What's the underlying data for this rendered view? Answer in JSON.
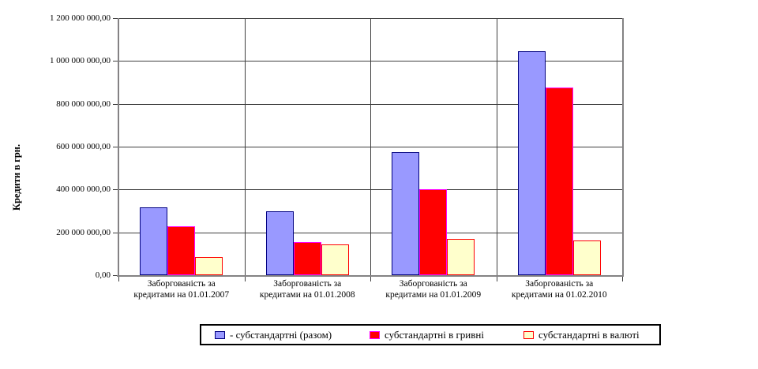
{
  "chart": {
    "background": "#FFFFFF",
    "axis_color": "#848284",
    "gridline_color": "#3F3F3F",
    "legend_border_color": "#000000",
    "text_color": "#000000"
  },
  "chart_data": {
    "type": "bar",
    "title": "",
    "xlabel": "",
    "ylabel": "Кредити в грн.",
    "ylim": [
      0,
      1200000000
    ],
    "ytick_step": 200000000,
    "y_tick_labels": [
      "0,00",
      "200 000 000,00",
      "400 000 000,00",
      "600 000 000,00",
      "800 000 000,00",
      "1 000 000 000,00",
      "1 200 000 000,00"
    ],
    "grid": true,
    "legend_position": "bottom",
    "categories": [
      "Заборгованість за кредитами на 01.01.2007",
      "Заборгованість за кредитами на 01.01.2008",
      "Заборгованість за кредитами на 01.01.2009",
      "Заборгованість за кредитами на 01.02.2010"
    ],
    "category_lines": [
      [
        "Заборгованість за",
        "кредитами на 01.01.2007"
      ],
      [
        "Заборгованість за",
        "кредитами на 01.01.2008"
      ],
      [
        "Заборгованість за",
        "кредитами на 01.01.2009"
      ],
      [
        "Заборгованість за",
        "кредитами на 01.02.2010"
      ]
    ],
    "series": [
      {
        "name": "- субстандартні (разом)",
        "fill": "#9999FF",
        "border": "#000080",
        "values": [
          315000000,
          300000000,
          575000000,
          1045000000
        ]
      },
      {
        "name": "субстандартні в гривні",
        "fill": "#FF0000",
        "border": "#FF00FF",
        "values": [
          228000000,
          155000000,
          400000000,
          875000000
        ]
      },
      {
        "name": "субстандартні в валюті",
        "fill": "#FFFFCC",
        "border": "#FF0000",
        "values": [
          85000000,
          143000000,
          170000000,
          163000000
        ]
      }
    ]
  }
}
